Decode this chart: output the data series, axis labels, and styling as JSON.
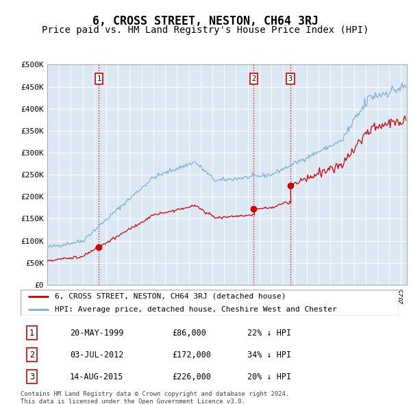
{
  "title": "6, CROSS STREET, NESTON, CH64 3RJ",
  "subtitle": "Price paid vs. HM Land Registry's House Price Index (HPI)",
  "title_fontsize": 12,
  "subtitle_fontsize": 10,
  "background_color": "#ffffff",
  "plot_bg_color": "#dce9f5",
  "grid_color": "#ffffff",
  "ylim": [
    0,
    500000
  ],
  "yticks": [
    0,
    50000,
    100000,
    150000,
    200000,
    250000,
    300000,
    350000,
    400000,
    450000,
    500000
  ],
  "ytick_labels": [
    "£0",
    "£50K",
    "£100K",
    "£150K",
    "£200K",
    "£250K",
    "£300K",
    "£350K",
    "£400K",
    "£450K",
    "£500K"
  ],
  "sale_color": "#cc0000",
  "hpi_color": "#7ab0d4",
  "sale_label": "6, CROSS STREET, NESTON, CH64 3RJ (detached house)",
  "hpi_label": "HPI: Average price, detached house, Cheshire West and Chester",
  "transactions": [
    {
      "label": "1",
      "date": "20-MAY-1999",
      "price": 86000,
      "pct": "22%",
      "x": 1999.38
    },
    {
      "label": "2",
      "date": "03-JUL-2012",
      "price": 172000,
      "pct": "34%",
      "x": 2012.5
    },
    {
      "label": "3",
      "date": "14-AUG-2015",
      "price": 226000,
      "pct": "20%",
      "x": 2015.62
    }
  ],
  "vline_color": "#cc0000",
  "footnote": "Contains HM Land Registry data © Crown copyright and database right 2024.\nThis data is licensed under the Open Government Licence v3.0.",
  "table_rows": [
    {
      "num": "1",
      "date": "20-MAY-1999",
      "price": "£86,000",
      "pct": "22% ↓ HPI"
    },
    {
      "num": "2",
      "date": "03-JUL-2012",
      "price": "£172,000",
      "pct": "34% ↓ HPI"
    },
    {
      "num": "3",
      "date": "14-AUG-2015",
      "price": "£226,000",
      "pct": "20% ↓ HPI"
    }
  ]
}
